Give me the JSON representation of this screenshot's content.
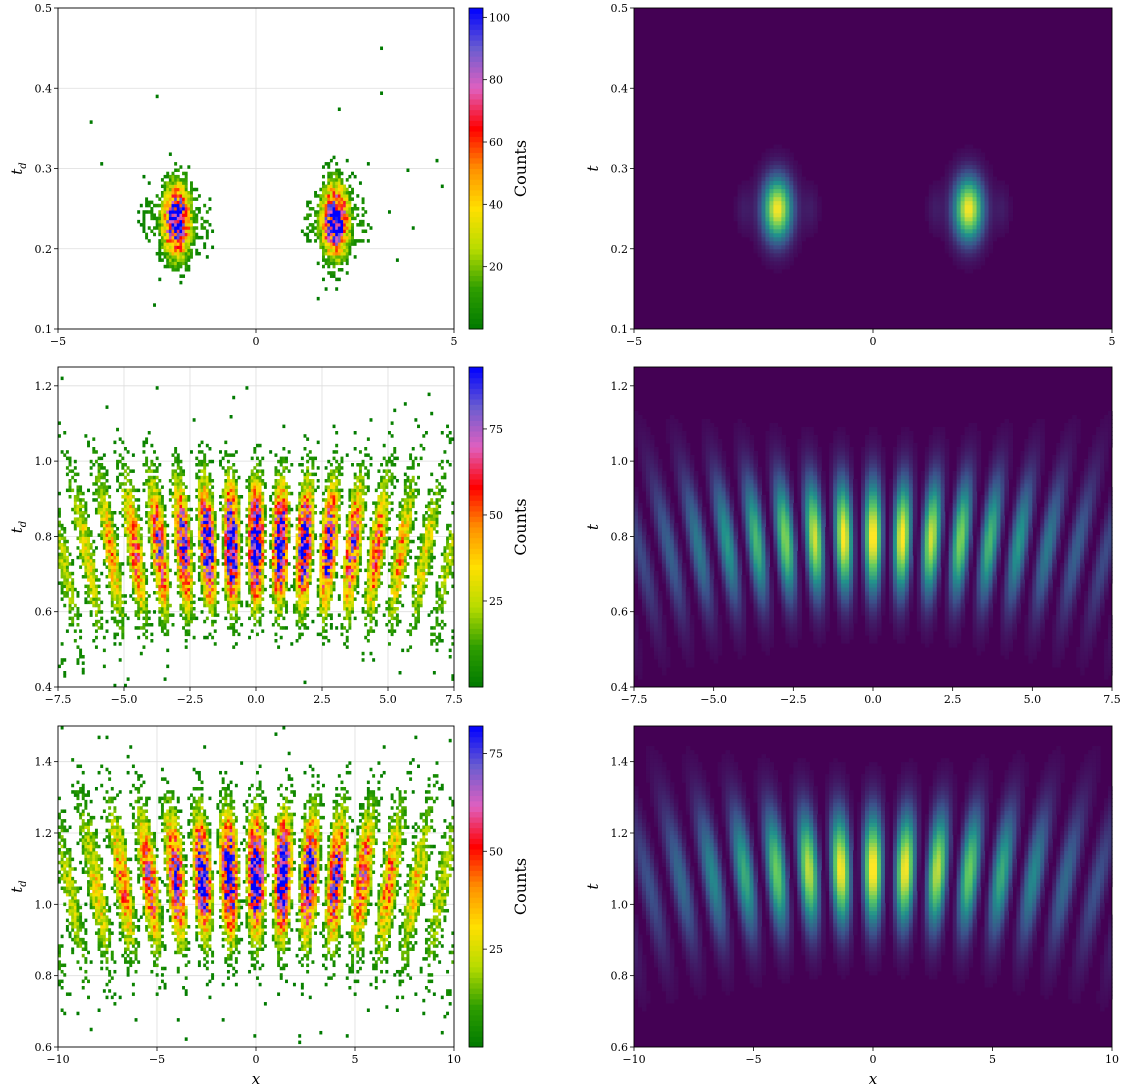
{
  "colors": {
    "hist_colormap": [
      "#007a00",
      "#2e9e00",
      "#b7dc00",
      "#ffe000",
      "#ff9000",
      "#ff0000",
      "#e060c0",
      "#6a5cd0",
      "#0000ff"
    ],
    "density_colormap": [
      "#440154",
      "#3b528b",
      "#21918c",
      "#5ec962",
      "#fde725"
    ],
    "grid": "#dddddd"
  },
  "chart_data": [
    {
      "type": "heatmap",
      "panel": "top-left",
      "xlabel": "",
      "ylabel": "t_d",
      "xlim": [
        -5,
        5
      ],
      "ylim": [
        0.1,
        0.5
      ],
      "xticks": [
        -5,
        0,
        5
      ],
      "yticks": [
        0.1,
        0.2,
        0.3,
        0.4,
        0.5
      ],
      "grid": true,
      "colorbar": {
        "label": "Counts",
        "range": [
          0,
          103
        ],
        "ticks": [
          20,
          40,
          60,
          80,
          100
        ]
      },
      "blobs": [
        {
          "x": -2.0,
          "t": 0.235,
          "peak_counts": 100
        },
        {
          "x": 2.0,
          "t": 0.235,
          "peak_counts": 100
        }
      ]
    },
    {
      "type": "heatmap",
      "panel": "top-right",
      "xlabel": "",
      "ylabel": "t",
      "xlim": [
        -5,
        5
      ],
      "ylim": [
        0.1,
        0.5
      ],
      "xticks": [
        -5,
        0,
        5
      ],
      "yticks": [
        0.1,
        0.2,
        0.3,
        0.4,
        0.5
      ],
      "grid": false,
      "blobs": [
        {
          "x": -2.0,
          "t": 0.25
        },
        {
          "x": 2.0,
          "t": 0.25
        }
      ]
    },
    {
      "type": "heatmap",
      "panel": "middle-left",
      "xlabel": "",
      "ylabel": "t_d",
      "xlim": [
        -7.5,
        7.5
      ],
      "ylim": [
        0.4,
        1.25
      ],
      "xticks": [
        -7.5,
        -5.0,
        -2.5,
        0.0,
        2.5,
        5.0,
        7.5
      ],
      "yticks": [
        0.4,
        0.6,
        0.8,
        1.0,
        1.2
      ],
      "grid": true,
      "colorbar": {
        "label": "Counts",
        "range": [
          0,
          93
        ],
        "ticks": [
          25,
          50,
          75
        ]
      },
      "fringes": {
        "center_t": 0.78,
        "spacing_x": 0.92,
        "peak_counts": 90
      }
    },
    {
      "type": "heatmap",
      "panel": "middle-right",
      "xlabel": "",
      "ylabel": "t",
      "xlim": [
        -7.5,
        7.5
      ],
      "ylim": [
        0.4,
        1.25
      ],
      "xticks": [
        -7.5,
        -5.0,
        -2.5,
        0.0,
        2.5,
        5.0,
        7.5
      ],
      "yticks": [
        0.4,
        0.6,
        0.8,
        1.0,
        1.2
      ],
      "grid": false,
      "fringes": {
        "center_t": 0.8,
        "spacing_x": 0.92
      }
    },
    {
      "type": "heatmap",
      "panel": "bottom-left",
      "xlabel": "x",
      "ylabel": "t_d",
      "xlim": [
        -10,
        10
      ],
      "ylim": [
        0.6,
        1.5
      ],
      "xticks": [
        -10,
        -5,
        0,
        5,
        10
      ],
      "yticks": [
        0.6,
        0.8,
        1.0,
        1.2,
        1.4
      ],
      "grid": true,
      "colorbar": {
        "label": "Counts",
        "range": [
          0,
          82
        ],
        "ticks": [
          25,
          50,
          75
        ]
      },
      "fringes": {
        "center_t": 1.08,
        "spacing_x": 1.35,
        "peak_counts": 80
      }
    },
    {
      "type": "heatmap",
      "panel": "bottom-right",
      "xlabel": "x",
      "ylabel": "t",
      "xlim": [
        -10,
        10
      ],
      "ylim": [
        0.6,
        1.5
      ],
      "xticks": [
        -10,
        -5,
        0,
        5,
        10
      ],
      "yticks": [
        0.6,
        0.8,
        1.0,
        1.2,
        1.4
      ],
      "grid": false,
      "fringes": {
        "center_t": 1.1,
        "spacing_x": 1.35
      }
    }
  ]
}
